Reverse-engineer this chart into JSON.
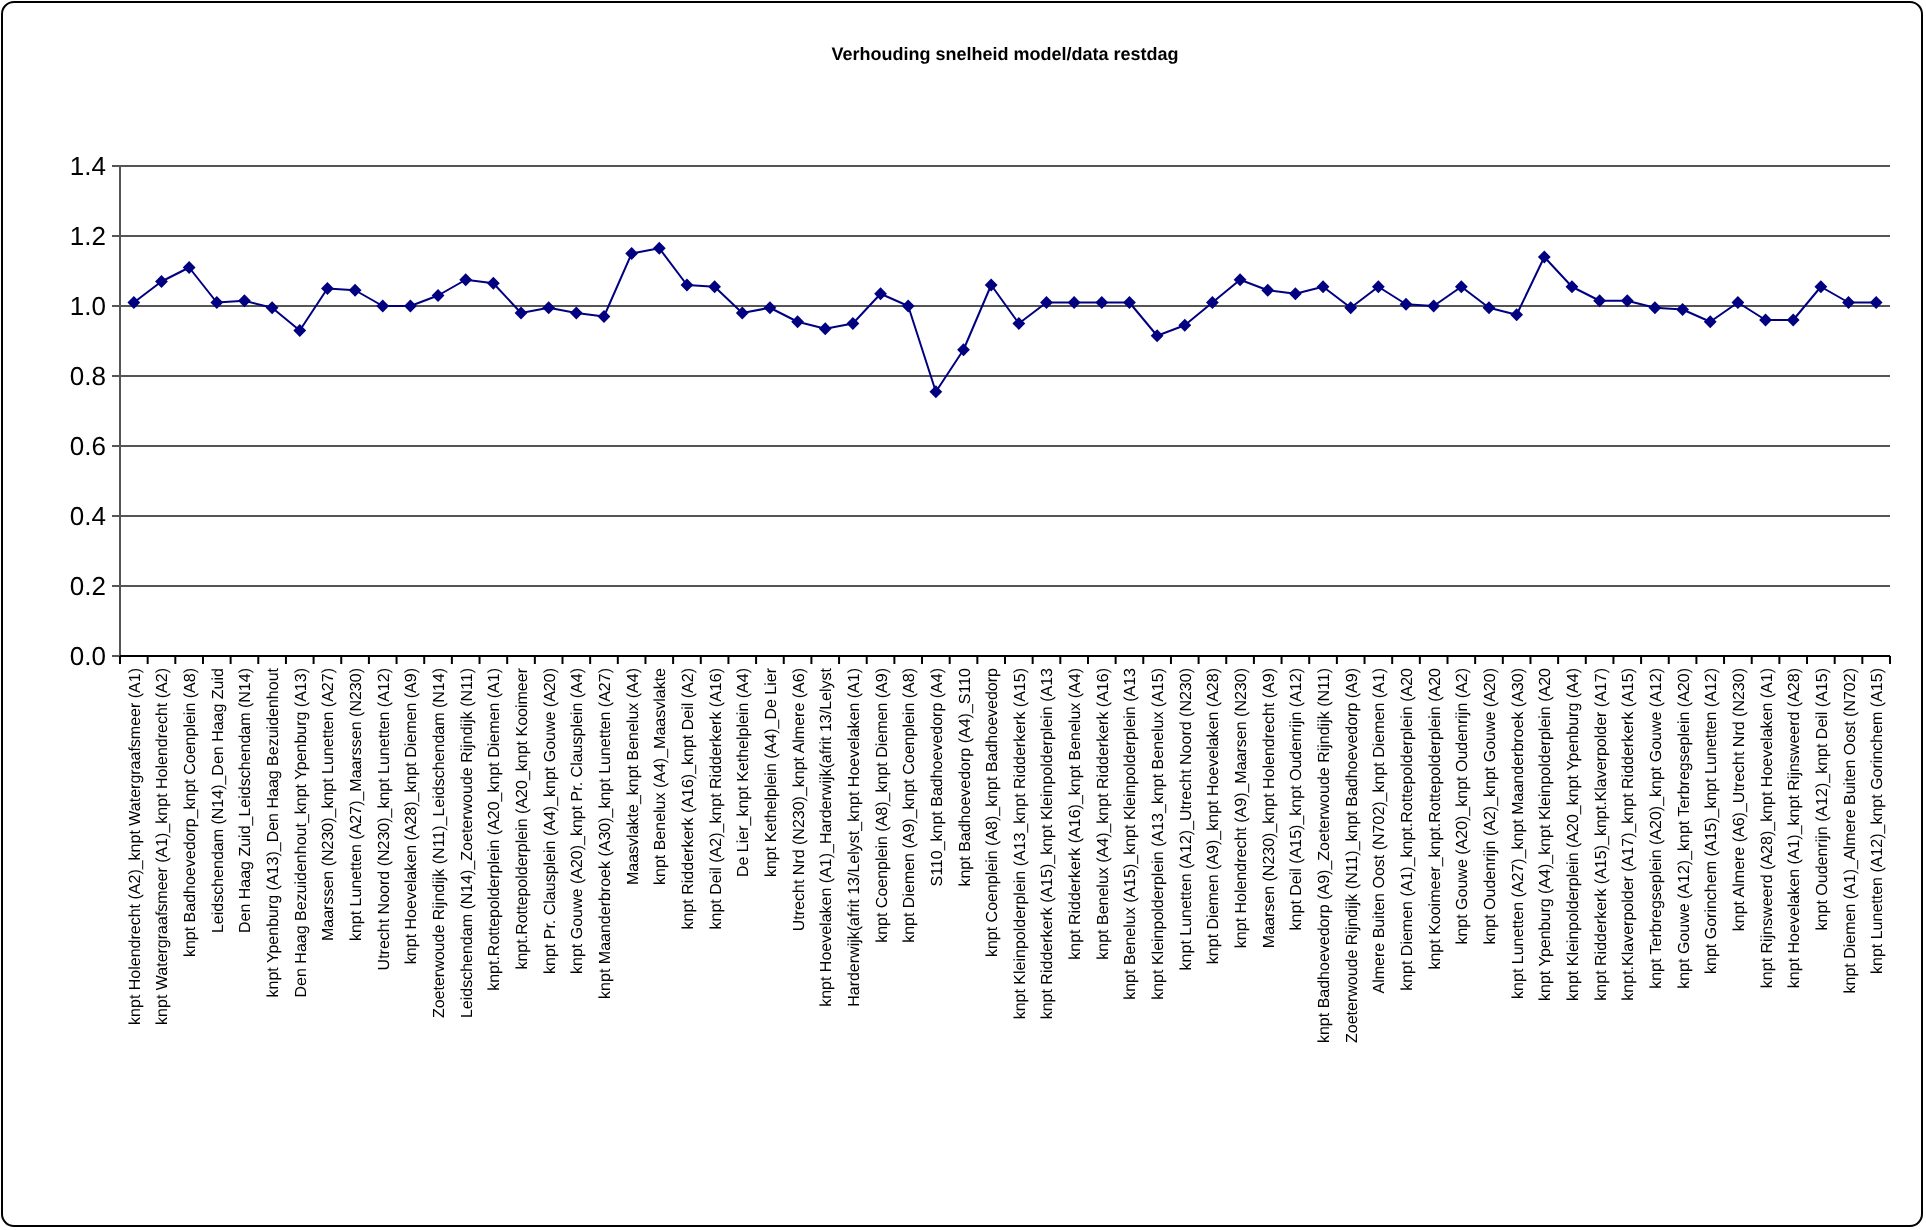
{
  "chart_data": {
    "type": "line",
    "title": "Verhouding snelheid model/data restdag",
    "categories": [
      "knpt Holendrecht (A2)_knpt Watergraafsmeer (A1)",
      "knpt Watergraafsmeer (A1)_knpt Holendrecht (A2)",
      "knpt Badhoevedorp_knpt Coenplein (A8)",
      "Leidschendam (N14)_Den Haag Zuid",
      "Den Haag Zuid_Leidschendam (N14)",
      "knpt Ypenburg (A13)_Den Haag Bezuidenhout",
      "Den Haag Bezuidenhout_knpt Ypenburg (A13)",
      "Maarssen (N230)_knpt Lunetten (A27)",
      "knpt Lunetten (A27)_Maarssen (N230)",
      "Utrecht Noord (N230)_knpt Lunetten (A12)",
      "knpt Hoevelaken (A28)_knpt Diemen (A9)",
      "Zoeterwoude Rijndijk (N11)_Leidschendam (N14)",
      "Leidschendam (N14)_Zoeterwoude Rijndijk (N11)",
      "knpt.Rottepolderplein (A20_knpt Diemen (A1)",
      "knpt.Rottepolderplein (A20_knpt Kooimeer",
      "knpt Pr. Clausplein (A4)_knpt Gouwe (A20)",
      "knpt Gouwe (A20)_knpt Pr. Clausplein (A4)",
      "knpt Maanderbroek (A30)_knpt Lunetten (A27)",
      "Maasvlakte_knpt Benelux (A4)",
      "knpt Benelux (A4)_Maasvlakte",
      "knpt Ridderkerk (A16)_knpt Deil (A2)",
      "knpt Deil (A2)_knpt Ridderkerk (A16)",
      "De Lier_knpt Kethelplein (A4)",
      "knpt Kethelplein (A4)_De Lier",
      "Utrecht Nrd (N230)_knpt Almere (A6)",
      "knpt Hoevelaken (A1)_Harderwijk(afrit 13/Lelyst",
      "Harderwijk(afrit 13/Lelyst_knpt Hoevelaken (A1)",
      "knpt Coenplein (A8)_knpt Diemen (A9)",
      "knpt Diemen (A9)_knpt Coenplein (A8)",
      "S110_knpt Badhoevedorp (A4)",
      "knpt Badhoevedorp (A4)_S110",
      "knpt Coenplein (A8)_knpt Badhoevedorp",
      "knpt Kleinpolderplein (A13_knpt Ridderkerk (A15)",
      "knpt Ridderkerk (A15)_knpt Kleinpolderplein (A13",
      "knpt Ridderkerk (A16)_knpt Benelux (A4)",
      "knpt Benelux (A4)_knpt Ridderkerk (A16)",
      "knpt Benelux (A15)_knpt Kleinpolderplein (A13",
      "knpt Kleinpolderplein (A13_knpt Benelux (A15)",
      "knpt Lunetten (A12)_Utrecht Noord (N230)",
      "knpt Diemen (A9)_knpt Hoevelaken (A28)",
      "knpt Holendrecht (A9)_Maarsen (N230)",
      "Maarsen (N230)_knpt Holendrecht (A9)",
      "knpt Deil (A15)_knpt Oudenrijn (A12)",
      "knpt Badhoevedorp (A9)_Zoeterwoude Rijndijk (N11)",
      "Zoeterwoude Rijndijk (N11)_knpt Badhoevedorp (A9)",
      "Almere Buiten Oost (N702)_knpt Diemen (A1)",
      "knpt Diemen (A1)_knpt.Rottepolderplein (A20",
      "knpt Kooimeer_knpt.Rottepolderplein (A20",
      "knpt Gouwe (A20)_knpt Oudenrijn (A2)",
      "knpt Oudenrijn (A2)_knpt Gouwe (A20)",
      "knpt Lunetten (A27)_knpt Maanderbroek (A30)",
      "knpt Ypenburg (A4)_knpt Kleinpolderplein (A20",
      "knpt Kleinpolderplein (A20_knpt Ypenburg (A4)",
      "knpt Ridderkerk (A15)_knpt.Klaverpolder (A17)",
      "knpt.Klaverpolder (A17)_knpt Ridderkerk (A15)",
      "knpt Terbregseplein (A20)_knpt Gouwe (A12)",
      "knpt Gouwe (A12)_knpt Terbregseplein (A20)",
      "knpt Gorinchem (A15)_knpt Lunetten (A12)",
      "knpt Almere (A6)_Utrecht Nrd (N230)",
      "knpt Rijnsweerd (A28)_knpt Hoevelaken (A1)",
      "knpt Hoevelaken (A1)_knpt Rijnsweerd (A28)",
      "knpt Oudenrijn (A12)_knpt Deil (A15)",
      "knpt Diemen (A1)_Almere Buiten Oost (N702)",
      "knpt Lunetten (A12)_knpt Gorinchem (A15)"
    ],
    "series": [
      {
        "color": "#000080",
        "values": [
          1.01,
          1.07,
          1.11,
          1.01,
          1.015,
          0.995,
          0.93,
          1.05,
          1.045,
          1.0,
          1.0,
          1.03,
          1.075,
          1.065,
          0.98,
          0.995,
          0.98,
          0.97,
          1.15,
          1.165,
          1.06,
          1.055,
          0.98,
          0.995,
          0.955,
          0.935,
          0.95,
          1.035,
          1.0,
          0.755,
          0.875,
          1.06,
          0.95,
          1.01,
          1.01,
          1.01,
          1.01,
          0.915,
          0.945,
          1.01,
          1.075,
          1.045,
          1.035,
          1.055,
          0.995,
          1.055,
          1.005,
          1.0,
          1.055,
          0.995,
          0.975,
          1.14,
          1.055,
          1.015,
          1.015,
          0.995,
          0.99,
          0.955,
          1.01,
          0.96,
          0.96,
          1.055,
          1.01,
          1.01
        ]
      }
    ],
    "ylim": [
      0,
      1.4
    ],
    "yticks": [
      {
        "value": 0,
        "label": "0.0"
      },
      {
        "value": 0.2,
        "label": "0.2"
      },
      {
        "value": 0.4,
        "label": "0.4"
      },
      {
        "value": 0.6,
        "label": "0.6"
      },
      {
        "value": 0.8,
        "label": "0.8"
      },
      {
        "value": 1,
        "label": "1.0"
      },
      {
        "value": 1.2,
        "label": "1.2"
      },
      {
        "value": 1.4,
        "label": "1.4"
      }
    ],
    "grid": "y",
    "marker": "diamond",
    "line_style": "solid"
  }
}
